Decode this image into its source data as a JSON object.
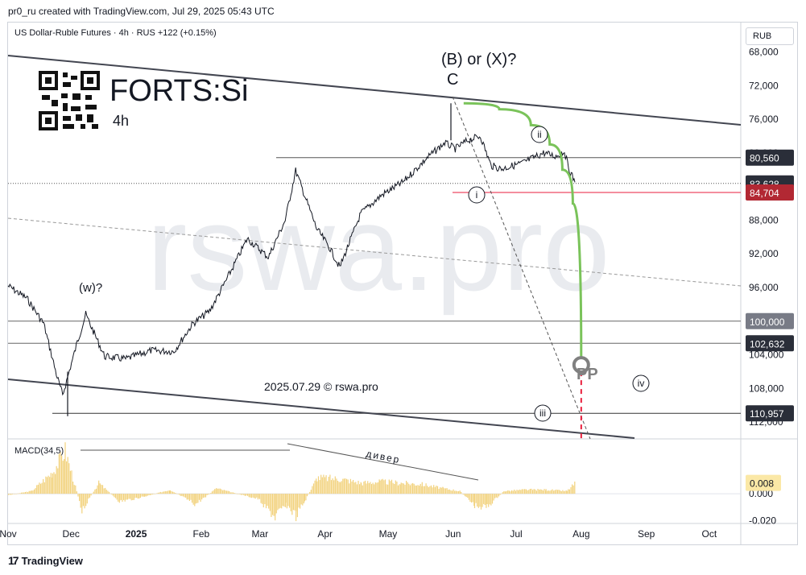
{
  "header": {
    "attribution": "pr0_ru created with TradingView.com, Jul 29, 2025 05:43 UTC",
    "symbol_line": "US Dollar-Ruble Futures · 4h · RUS  +122 (+0.15%)",
    "unit": "RUB",
    "footer_brand": "TradingView"
  },
  "overlay": {
    "ticker": "FORTS:Si",
    "timeframe": "4h",
    "watermark": "rswa.pro",
    "date_stamp": "2025.07.29 © rswa.pro",
    "wave_labels": {
      "b_or_x": "(B) or (X)?",
      "c": "C",
      "w": "(w)?",
      "i": "i",
      "ii": "ii",
      "iii": "iii",
      "iv": "iv",
      "pp": "PP",
      "divergence": "дивер"
    }
  },
  "colors": {
    "price_line": "#131722",
    "trend_line": "#434651",
    "green_projection": "#7ac35a",
    "red_target": "#e91e3c",
    "macd_bar": "#f2d27d",
    "price_badge_dark": "#2a2e39",
    "price_badge_red": "#b22833",
    "price_badge_gray": "#787b86"
  },
  "chart_data": [
    {
      "type": "line",
      "title": "US Dollar-Ruble Futures 4h",
      "y_axis": {
        "inverted": true,
        "ticks": [
          "68,000",
          "72,000",
          "76,000",
          "80,000",
          "84,000",
          "88,000",
          "92,000",
          "96,000",
          "100,000",
          "104,000",
          "108,000",
          "112,000"
        ],
        "tick_values": [
          68000,
          72000,
          76000,
          80000,
          84000,
          88000,
          92000,
          96000,
          100000,
          104000,
          108000,
          112000
        ],
        "range": [
          64500,
          114000
        ]
      },
      "x_axis": {
        "ticks": [
          "Nov",
          "Dec",
          "2025",
          "Feb",
          "Mar",
          "Apr",
          "May",
          "Jun",
          "Jul",
          "Aug",
          "Sep",
          "Oct"
        ],
        "tick_dates": [
          "2024-11-01",
          "2024-12-01",
          "2025-01-01",
          "2025-02-01",
          "2025-03-01",
          "2025-04-01",
          "2025-05-01",
          "2025-06-01",
          "2025-07-01",
          "2025-08-01",
          "2025-09-01",
          "2025-10-01"
        ],
        "range": [
          "2024-11-01",
          "2025-10-16"
        ]
      },
      "price_series": {
        "x": [
          "2024-11-01",
          "2024-11-10",
          "2024-11-18",
          "2024-11-24",
          "2024-11-27",
          "2024-12-04",
          "2024-12-08",
          "2024-12-17",
          "2024-12-27",
          "2025-01-08",
          "2025-01-19",
          "2025-01-28",
          "2025-02-05",
          "2025-02-13",
          "2025-02-23",
          "2025-03-05",
          "2025-03-13",
          "2025-03-18",
          "2025-03-28",
          "2025-04-03",
          "2025-04-08",
          "2025-04-18",
          "2025-04-28",
          "2025-05-08",
          "2025-05-20",
          "2025-05-28",
          "2025-06-02",
          "2025-06-08",
          "2025-06-14",
          "2025-06-19",
          "2025-06-24",
          "2025-07-04",
          "2025-07-14",
          "2025-07-20",
          "2025-07-24",
          "2025-07-26",
          "2025-07-29"
        ],
        "y": [
          95800,
          97300,
          100300,
          106300,
          108800,
          102500,
          99200,
          104200,
          104500,
          103500,
          103600,
          100300,
          98800,
          95100,
          90200,
          92400,
          88000,
          82100,
          89000,
          91200,
          93600,
          87200,
          85000,
          83500,
          80500,
          78800,
          79500,
          78500,
          78000,
          81500,
          81900,
          81200,
          80000,
          80400,
          79800,
          81800,
          83500
        ]
      },
      "projection": {
        "name": "green path",
        "x": [
          "2025-06-06",
          "2025-06-23",
          "2025-07-08",
          "2025-07-17",
          "2025-07-23",
          "2025-07-28",
          "2025-08-01"
        ],
        "y": [
          74100,
          74800,
          76700,
          79000,
          82000,
          86000,
          104500
        ]
      },
      "levels": [
        {
          "label": "80,560",
          "value": 80560,
          "style": "dark"
        },
        {
          "label": "83,628",
          "value": 83628,
          "style": "dark"
        },
        {
          "label": "84,704",
          "value": 84704,
          "style": "red"
        },
        {
          "label": "100,000",
          "value": 100000,
          "style": "gray"
        },
        {
          "label": "102,632",
          "value": 102632,
          "style": "dark"
        },
        {
          "label": "110,957",
          "value": 110957,
          "style": "dark"
        }
      ]
    },
    {
      "type": "bar",
      "title": "MACD(34,5)",
      "y_axis": {
        "ticks": [
          "-0.020",
          "0.000"
        ],
        "tick_values": [
          -0.02,
          0.0
        ],
        "range": [
          0.04,
          -0.022
        ]
      },
      "current_value": "0.008",
      "x": [
        "2024-11-01",
        "2024-11-12",
        "2024-11-22",
        "2024-11-28",
        "2024-12-06",
        "2024-12-14",
        "2024-12-24",
        "2025-01-05",
        "2025-01-17",
        "2025-01-29",
        "2025-02-08",
        "2025-02-18",
        "2025-02-28",
        "2025-03-08",
        "2025-03-13",
        "2025-03-18",
        "2025-03-22",
        "2025-03-28",
        "2025-04-08",
        "2025-04-18",
        "2025-04-27",
        "2025-05-07",
        "2025-05-17",
        "2025-05-27",
        "2025-06-04",
        "2025-06-11",
        "2025-06-17",
        "2025-06-25",
        "2025-07-05",
        "2025-07-15",
        "2025-07-25",
        "2025-07-29"
      ],
      "values": [
        -0.001,
        0.002,
        0.016,
        0.032,
        -0.012,
        0.008,
        -0.006,
        -0.002,
        0.003,
        -0.008,
        0.004,
        0.0,
        -0.004,
        -0.018,
        -0.008,
        -0.017,
        -0.006,
        0.012,
        0.011,
        0.008,
        0.009,
        0.008,
        0.007,
        0.004,
        0.002,
        -0.009,
        -0.01,
        0.002,
        0.003,
        0.003,
        0.002,
        0.008
      ]
    }
  ]
}
